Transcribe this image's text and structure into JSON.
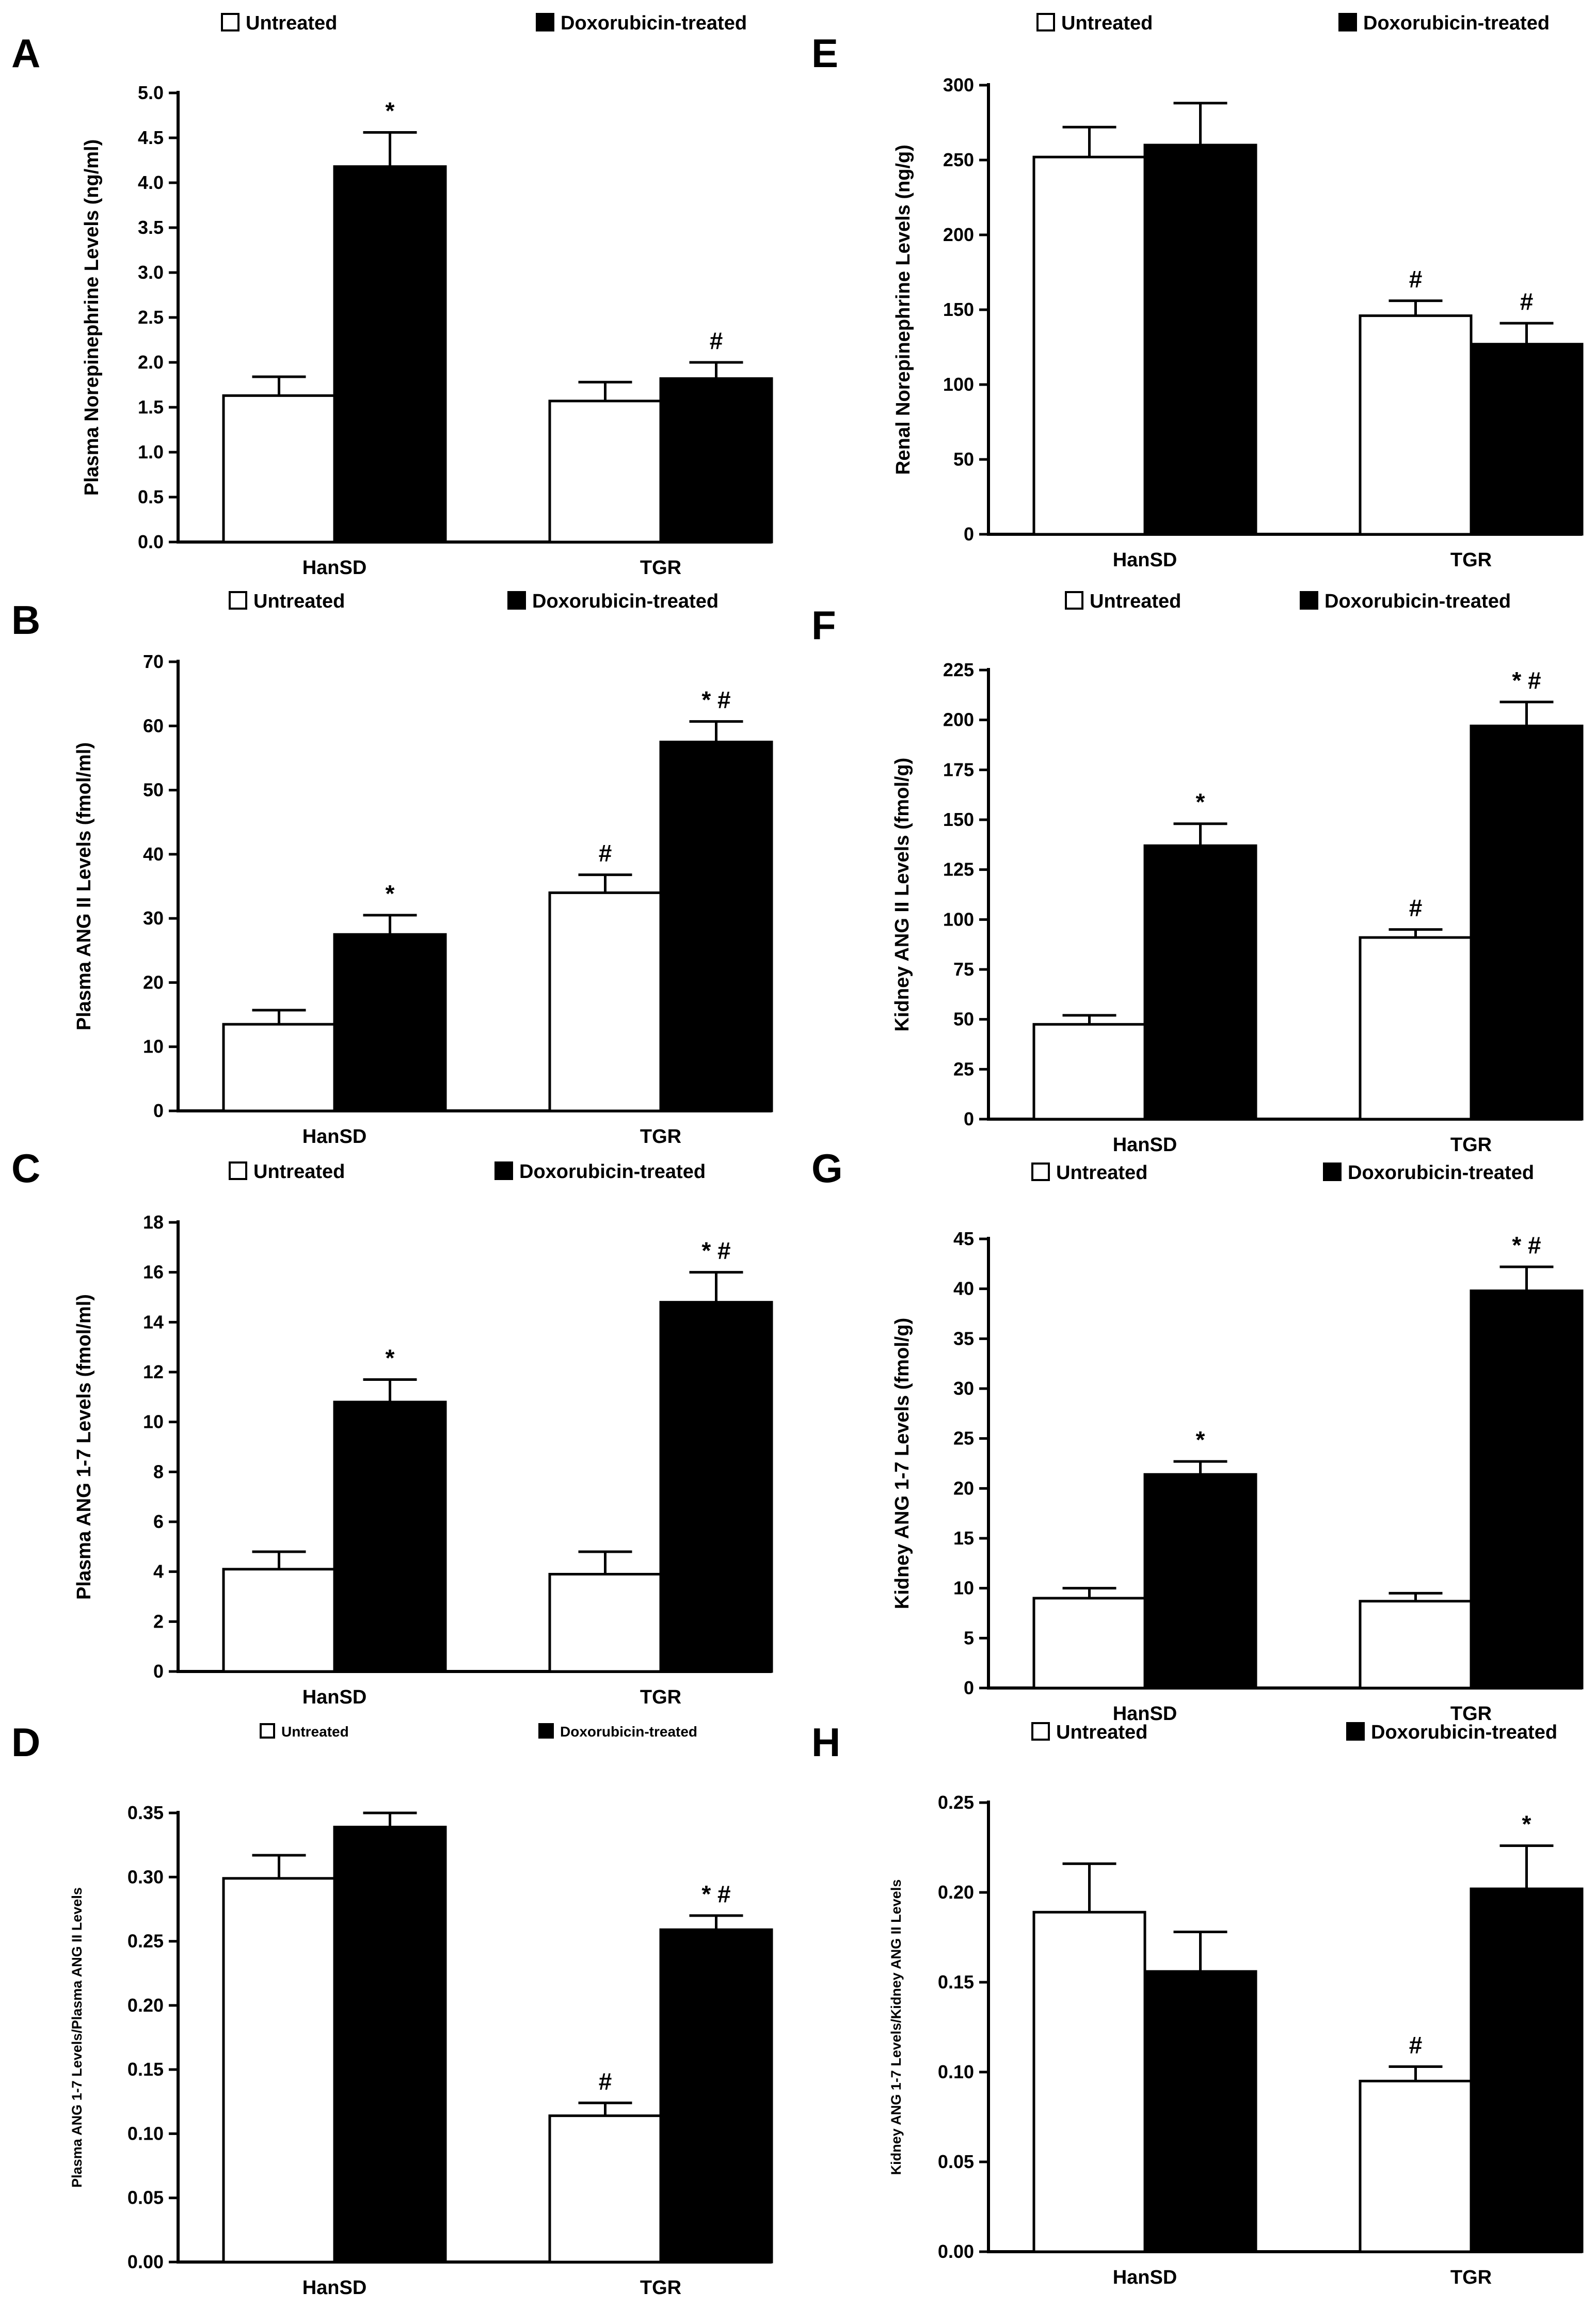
{
  "figure": {
    "legend": {
      "untreated": "Untreated",
      "treated": "Doxorubicin-treated"
    },
    "colors": {
      "untreated": "#ffffff",
      "treated": "#000000",
      "outline": "#000000"
    }
  },
  "chart_data": [
    {
      "id": "A",
      "panel": "A",
      "type": "bar",
      "ylabel": "Plasma Norepinephrine Levels (ng/ml)",
      "categories": [
        "HanSD",
        "TGR"
      ],
      "series": [
        {
          "name": "Untreated",
          "values": [
            1.63,
            1.57
          ],
          "errors": [
            0.21,
            0.21
          ]
        },
        {
          "name": "Doxorubicin-treated",
          "values": [
            4.18,
            1.82
          ],
          "errors": [
            0.38,
            0.18
          ]
        }
      ],
      "annotations": [
        [
          "",
          "*"
        ],
        [
          "",
          "#"
        ]
      ],
      "yticks": [
        "0.0",
        "0.5",
        "1.0",
        "1.5",
        "2.0",
        "2.5",
        "3.0",
        "3.5",
        "4.0",
        "4.5",
        "5.0"
      ],
      "ylim": [
        0,
        5
      ]
    },
    {
      "id": "B",
      "panel": "B",
      "type": "bar",
      "ylabel": "Plasma ANG II Levels (fmol/ml)",
      "categories": [
        "HanSD",
        "TGR"
      ],
      "series": [
        {
          "name": "Untreated",
          "values": [
            13.5,
            34.0
          ],
          "errors": [
            2.2,
            2.8
          ]
        },
        {
          "name": "Doxorubicin-treated",
          "values": [
            27.5,
            57.5
          ],
          "errors": [
            3.0,
            3.2
          ]
        }
      ],
      "annotations": [
        [
          "",
          "*"
        ],
        [
          "#",
          "* #"
        ]
      ],
      "yticks": [
        "0",
        "10",
        "20",
        "30",
        "40",
        "50",
        "60",
        "70"
      ],
      "ylim": [
        0,
        70
      ]
    },
    {
      "id": "C",
      "panel": "C",
      "type": "bar",
      "ylabel": "Plasma ANG 1-7 Levels (fmol/ml)",
      "categories": [
        "HanSD",
        "TGR"
      ],
      "series": [
        {
          "name": "Untreated",
          "values": [
            4.1,
            3.9
          ],
          "errors": [
            0.7,
            0.9
          ]
        },
        {
          "name": "Doxorubicin-treated",
          "values": [
            10.8,
            14.8
          ],
          "errors": [
            0.9,
            1.2
          ]
        }
      ],
      "annotations": [
        [
          "",
          "*"
        ],
        [
          "",
          "* #"
        ]
      ],
      "yticks": [
        "0",
        "2",
        "4",
        "6",
        "8",
        "10",
        "12",
        "14",
        "16",
        "18"
      ],
      "ylim": [
        0,
        18
      ]
    },
    {
      "id": "D",
      "panel": "D",
      "type": "bar",
      "ylabel": "Plasma ANG 1-7 Levels/Plasma ANG II Levels",
      "categories": [
        "HanSD",
        "TGR"
      ],
      "series": [
        {
          "name": "Untreated",
          "values": [
            0.299,
            0.114
          ],
          "errors": [
            0.018,
            0.01
          ]
        },
        {
          "name": "Doxorubicin-treated",
          "values": [
            0.339,
            0.259
          ],
          "errors": [
            0.011,
            0.011
          ]
        }
      ],
      "annotations": [
        [
          "",
          ""
        ],
        [
          "#",
          "* #"
        ]
      ],
      "yticks": [
        "0.00",
        "0.05",
        "0.10",
        "0.15",
        "0.20",
        "0.25",
        "0.30",
        "0.35"
      ],
      "ylim": [
        0,
        0.35
      ]
    },
    {
      "id": "E",
      "panel": "E",
      "type": "bar",
      "ylabel": "Renal Norepinephrine Levels (ng/g)",
      "categories": [
        "HanSD",
        "TGR"
      ],
      "series": [
        {
          "name": "Untreated",
          "values": [
            252,
            146
          ],
          "errors": [
            20,
            10
          ]
        },
        {
          "name": "Doxorubicin-treated",
          "values": [
            260,
            127
          ],
          "errors": [
            28,
            14
          ]
        }
      ],
      "annotations": [
        [
          "",
          ""
        ],
        [
          "#",
          "#"
        ]
      ],
      "yticks": [
        "0",
        "50",
        "100",
        "150",
        "200",
        "250",
        "300"
      ],
      "ylim": [
        0,
        300
      ]
    },
    {
      "id": "F",
      "panel": "F",
      "type": "bar",
      "ylabel": "Kidney ANG II Levels (fmol/g)",
      "categories": [
        "HanSD",
        "TGR"
      ],
      "series": [
        {
          "name": "Untreated",
          "values": [
            47.5,
            91
          ],
          "errors": [
            4.5,
            4
          ]
        },
        {
          "name": "Doxorubicin-treated",
          "values": [
            137,
            197
          ],
          "errors": [
            11,
            12
          ]
        }
      ],
      "annotations": [
        [
          "",
          "*"
        ],
        [
          "#",
          "* #"
        ]
      ],
      "yticks": [
        "0",
        "25",
        "50",
        "75",
        "100",
        "125",
        "150",
        "175",
        "200",
        "225"
      ],
      "ylim": [
        0,
        225
      ]
    },
    {
      "id": "G",
      "panel": "G",
      "type": "bar",
      "ylabel": "Kidney ANG 1-7 Levels (fmol/g)",
      "categories": [
        "HanSD",
        "TGR"
      ],
      "series": [
        {
          "name": "Untreated",
          "values": [
            9.0,
            8.7
          ],
          "errors": [
            1.0,
            0.8
          ]
        },
        {
          "name": "Doxorubicin-treated",
          "values": [
            21.4,
            39.8
          ],
          "errors": [
            1.3,
            2.4
          ]
        }
      ],
      "annotations": [
        [
          "",
          "*"
        ],
        [
          "",
          "* #"
        ]
      ],
      "yticks": [
        "0",
        "5",
        "10",
        "15",
        "20",
        "25",
        "30",
        "35",
        "40",
        "45"
      ],
      "ylim": [
        0,
        45
      ]
    },
    {
      "id": "H",
      "panel": "H",
      "type": "bar",
      "ylabel": "Kidney ANG 1-7 Levels/Kidney ANG II Levels",
      "categories": [
        "HanSD",
        "TGR"
      ],
      "series": [
        {
          "name": "Untreated",
          "values": [
            0.189,
            0.095
          ],
          "errors": [
            0.027,
            0.008
          ]
        },
        {
          "name": "Doxorubicin-treated",
          "values": [
            0.156,
            0.202
          ],
          "errors": [
            0.022,
            0.024
          ]
        }
      ],
      "annotations": [
        [
          "",
          ""
        ],
        [
          "#",
          "*"
        ]
      ],
      "yticks": [
        "0.00",
        "0.05",
        "0.10",
        "0.15",
        "0.20",
        "0.25"
      ],
      "ylim": [
        0,
        0.25
      ]
    }
  ]
}
